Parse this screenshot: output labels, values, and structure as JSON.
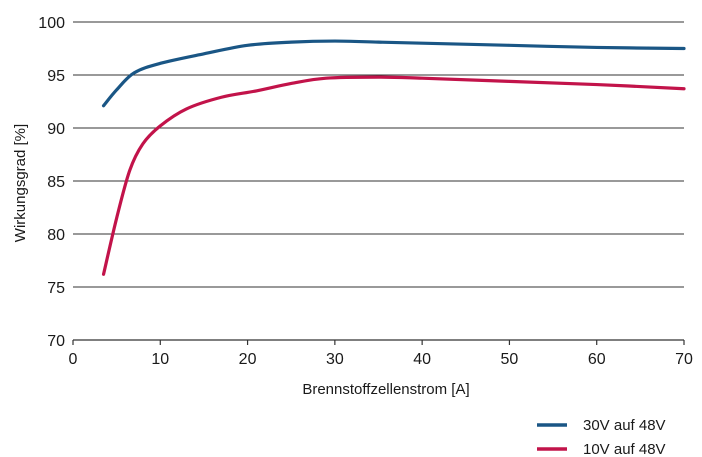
{
  "chart_data": {
    "type": "line",
    "title": "",
    "xlabel": "Brennstoffzellenstrom [A]",
    "ylabel": "Wirkungsgrad [%]",
    "xlim": [
      0,
      70
    ],
    "ylim": [
      70,
      100
    ],
    "xticks": [
      0,
      10,
      20,
      30,
      40,
      50,
      60,
      70
    ],
    "yticks": [
      70,
      75,
      80,
      85,
      90,
      95,
      100
    ],
    "grid": "horizontal",
    "legend_position": "bottom-right",
    "series": [
      {
        "name": "30V auf 48V",
        "color": "#1a5685",
        "x": [
          3.5,
          5,
          7,
          10,
          15,
          20,
          25,
          30,
          35,
          40,
          50,
          60,
          70
        ],
        "y": [
          92.1,
          93.6,
          95.2,
          96.1,
          97.0,
          97.8,
          98.1,
          98.2,
          98.1,
          98.0,
          97.8,
          97.6,
          97.5
        ]
      },
      {
        "name": "10V auf 48V",
        "color": "#c2134a",
        "x": [
          3.5,
          5,
          6.5,
          8,
          10,
          13,
          17,
          21,
          25,
          29,
          35,
          40,
          50,
          60,
          70
        ],
        "y": [
          76.2,
          81.5,
          86.0,
          88.5,
          90.2,
          91.8,
          92.9,
          93.5,
          94.2,
          94.7,
          94.8,
          94.7,
          94.4,
          94.1,
          93.7
        ]
      }
    ]
  }
}
